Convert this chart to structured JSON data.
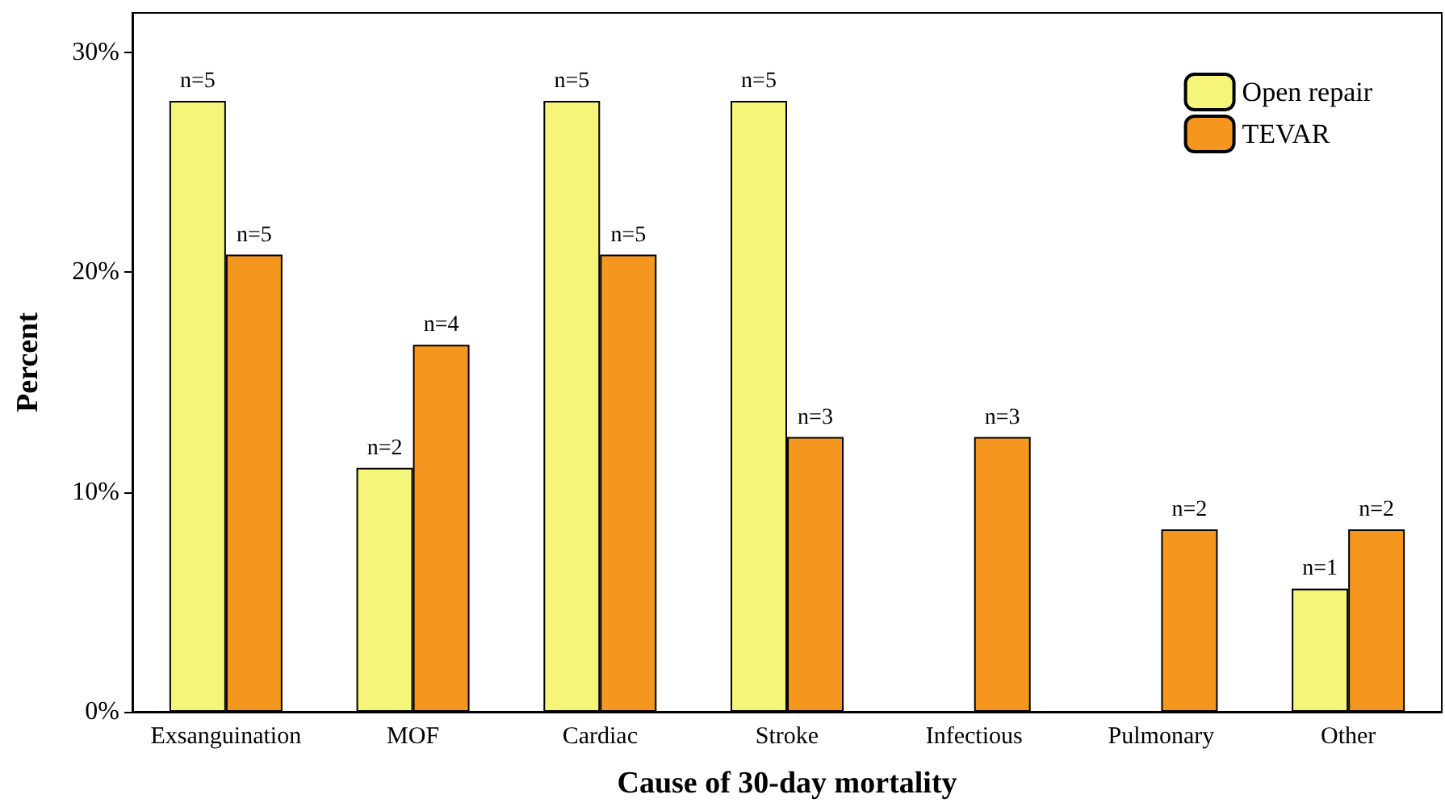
{
  "chart_data": {
    "type": "bar",
    "xlabel": "Cause of 30-day mortality",
    "ylabel": "Percent",
    "categories": [
      "Exsanguination",
      "MOF",
      "Cardiac",
      "Stroke",
      "Infectious",
      "Pulmonary",
      "Other"
    ],
    "series": [
      {
        "name": "Open repair",
        "color": "#f5f57a",
        "values": [
          27.8,
          11.1,
          27.8,
          27.8,
          null,
          null,
          5.6
        ]
      },
      {
        "name": "TEVAR",
        "color": "#f5961e",
        "values": [
          20.8,
          16.7,
          20.8,
          12.5,
          12.5,
          8.3,
          8.3
        ]
      }
    ],
    "annotations": [
      {
        "text": "n=5",
        "x": "Exsanguination",
        "y": 27.8
      },
      {
        "text": "n=5",
        "x": "Exsanguination",
        "y": 20.8
      },
      {
        "text": "n=2",
        "x": "MOF",
        "y": 11.1
      },
      {
        "text": "n=4",
        "x": "MOF",
        "y": 16.7
      },
      {
        "text": "n=5",
        "x": "Cardiac",
        "y": 27.8
      },
      {
        "text": "n=5",
        "x": "Cardiac",
        "y": 20.8
      },
      {
        "text": "n=5",
        "x": "Stroke",
        "y": 27.8
      },
      {
        "text": "n=3",
        "x": "Stroke",
        "y": 12.5
      },
      {
        "text": "n=3",
        "x": "Infectious",
        "y": 12.5
      },
      {
        "text": "n=2",
        "x": "Pulmonary",
        "y": 8.3
      },
      {
        "text": "n=1",
        "x": "Other",
        "y": 5.6
      },
      {
        "text": "n=2",
        "x": "Other",
        "y": 8.3
      }
    ],
    "ylim": [
      0,
      31.8
    ],
    "yticks": [
      {
        "value": 0,
        "label": "0%"
      },
      {
        "value": 10,
        "label": "10%"
      },
      {
        "value": 20,
        "label": "20%"
      },
      {
        "value": 30,
        "label": "30%"
      }
    ],
    "grid": false,
    "legend": "top right"
  }
}
